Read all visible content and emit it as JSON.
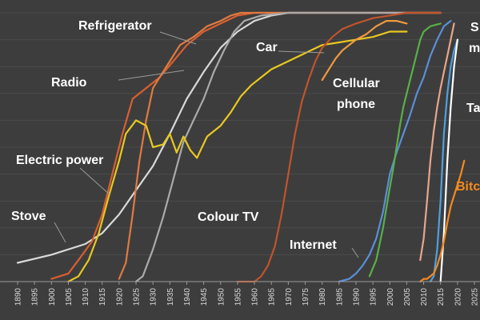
{
  "chart_data": {
    "type": "line",
    "title": "",
    "xlabel": "",
    "ylabel": "",
    "xlim": [
      1890,
      2025
    ],
    "ylim": [
      0,
      100
    ],
    "grid": true,
    "legend": "none",
    "x_ticks": [
      1890,
      1895,
      1900,
      1905,
      1910,
      1915,
      1920,
      1925,
      1930,
      1935,
      1940,
      1945,
      1950,
      1955,
      1960,
      1965,
      1970,
      1975,
      1980,
      1985,
      1990,
      1995,
      2000,
      2005,
      2010,
      2015,
      2020,
      2025
    ],
    "series": [
      {
        "name": "Stove",
        "color": "#d9d9d9",
        "points": [
          [
            1890,
            7
          ],
          [
            1900,
            10
          ],
          [
            1910,
            14
          ],
          [
            1915,
            18
          ],
          [
            1920,
            25
          ],
          [
            1925,
            34
          ],
          [
            1930,
            43
          ],
          [
            1935,
            55
          ],
          [
            1940,
            68
          ],
          [
            1945,
            78
          ],
          [
            1950,
            87
          ],
          [
            1955,
            93
          ],
          [
            1960,
            97
          ],
          [
            1965,
            99
          ],
          [
            1970,
            100
          ],
          [
            2015,
            100
          ]
        ]
      },
      {
        "name": "Electric power",
        "color": "#d85f30",
        "points": [
          [
            1900,
            1
          ],
          [
            1905,
            3
          ],
          [
            1908,
            8
          ],
          [
            1912,
            15
          ],
          [
            1915,
            25
          ],
          [
            1918,
            40
          ],
          [
            1921,
            55
          ],
          [
            1924,
            68
          ],
          [
            1928,
            72
          ],
          [
            1932,
            76
          ],
          [
            1936,
            82
          ],
          [
            1940,
            88
          ],
          [
            1945,
            93
          ],
          [
            1950,
            96
          ],
          [
            1955,
            99
          ],
          [
            1960,
            100
          ],
          [
            2015,
            100
          ]
        ]
      },
      {
        "name": "Radio",
        "color": "#e07a40",
        "points": [
          [
            1920,
            1
          ],
          [
            1922,
            7
          ],
          [
            1924,
            25
          ],
          [
            1926,
            45
          ],
          [
            1928,
            60
          ],
          [
            1930,
            72
          ],
          [
            1932,
            76
          ],
          [
            1935,
            82
          ],
          [
            1938,
            88
          ],
          [
            1942,
            91
          ],
          [
            1946,
            95
          ],
          [
            1950,
            97
          ],
          [
            1953,
            99
          ],
          [
            1956,
            100
          ],
          [
            2015,
            100
          ]
        ]
      },
      {
        "name": "Refrigerator",
        "color": "#aaaaaa",
        "points": [
          [
            1925,
            0
          ],
          [
            1927,
            2
          ],
          [
            1930,
            12
          ],
          [
            1933,
            24
          ],
          [
            1936,
            38
          ],
          [
            1939,
            52
          ],
          [
            1942,
            60
          ],
          [
            1945,
            68
          ],
          [
            1948,
            78
          ],
          [
            1951,
            86
          ],
          [
            1954,
            93
          ],
          [
            1957,
            97
          ],
          [
            1962,
            99
          ],
          [
            1970,
            100
          ],
          [
            2015,
            100
          ]
        ]
      },
      {
        "name": "Car",
        "color": "#e8c820",
        "points": [
          [
            1905,
            0
          ],
          [
            1908,
            2
          ],
          [
            1911,
            8
          ],
          [
            1914,
            18
          ],
          [
            1917,
            32
          ],
          [
            1920,
            45
          ],
          [
            1922,
            55
          ],
          [
            1925,
            60
          ],
          [
            1928,
            58
          ],
          [
            1930,
            50
          ],
          [
            1933,
            51
          ],
          [
            1935,
            55
          ],
          [
            1937,
            48
          ],
          [
            1939,
            54
          ],
          [
            1941,
            49
          ],
          [
            1943,
            46
          ],
          [
            1946,
            54
          ],
          [
            1950,
            58
          ],
          [
            1953,
            63
          ],
          [
            1956,
            69
          ],
          [
            1959,
            73
          ],
          [
            1962,
            76
          ],
          [
            1965,
            79
          ],
          [
            1970,
            82
          ],
          [
            1975,
            85
          ],
          [
            1980,
            88
          ],
          [
            1985,
            89
          ],
          [
            1990,
            90
          ],
          [
            1995,
            91
          ],
          [
            2000,
            93
          ],
          [
            2005,
            93
          ]
        ]
      },
      {
        "name": "Colour TV",
        "color": "#c0542c",
        "points": [
          [
            1955,
            0
          ],
          [
            1958,
            0
          ],
          [
            1960,
            0
          ],
          [
            1962,
            2
          ],
          [
            1964,
            6
          ],
          [
            1966,
            13
          ],
          [
            1968,
            25
          ],
          [
            1970,
            40
          ],
          [
            1972,
            55
          ],
          [
            1974,
            67
          ],
          [
            1976,
            75
          ],
          [
            1978,
            82
          ],
          [
            1980,
            87
          ],
          [
            1983,
            91
          ],
          [
            1986,
            94
          ],
          [
            1990,
            96
          ],
          [
            1995,
            98
          ],
          [
            2000,
            99
          ],
          [
            2005,
            100
          ],
          [
            2015,
            100
          ]
        ]
      },
      {
        "name": "Internet",
        "color": "#f09a3e",
        "points": [
          [
            1980,
            75
          ],
          [
            1982,
            79
          ],
          [
            1984,
            83
          ],
          [
            1986,
            86
          ],
          [
            1988,
            88
          ],
          [
            1990,
            90
          ],
          [
            1993,
            92
          ],
          [
            1996,
            95
          ],
          [
            1999,
            97
          ],
          [
            2002,
            97
          ],
          [
            2005,
            96
          ]
        ]
      },
      {
        "name": "Cellular phone",
        "color": "#5a8fd8",
        "points": [
          [
            1985,
            0
          ],
          [
            1988,
            1
          ],
          [
            1990,
            3
          ],
          [
            1992,
            6
          ],
          [
            1994,
            10
          ],
          [
            1996,
            16
          ],
          [
            1998,
            26
          ],
          [
            2000,
            40
          ],
          [
            2002,
            48
          ],
          [
            2004,
            55
          ],
          [
            2006,
            62
          ],
          [
            2008,
            70
          ],
          [
            2010,
            76
          ],
          [
            2012,
            84
          ],
          [
            2014,
            90
          ],
          [
            2016,
            95
          ],
          [
            2018,
            97
          ]
        ]
      },
      {
        "name": "Smartphone",
        "color": "#58b048",
        "points": [
          [
            1994,
            2
          ],
          [
            1996,
            8
          ],
          [
            1998,
            20
          ],
          [
            2000,
            35
          ],
          [
            2001,
            42
          ],
          [
            2002,
            50
          ],
          [
            2003,
            58
          ],
          [
            2004,
            65
          ],
          [
            2005,
            70
          ],
          [
            2006,
            75
          ],
          [
            2007,
            80
          ],
          [
            2008,
            85
          ],
          [
            2009,
            90
          ],
          [
            2010,
            93
          ],
          [
            2012,
            95
          ],
          [
            2015,
            96
          ]
        ]
      },
      {
        "name": "Tablet",
        "color": "#e8a58a",
        "points": [
          [
            2009,
            8
          ],
          [
            2010,
            16
          ],
          [
            2011,
            30
          ],
          [
            2012,
            45
          ],
          [
            2013,
            56
          ],
          [
            2014,
            65
          ],
          [
            2015,
            72
          ],
          [
            2016,
            78
          ],
          [
            2017,
            84
          ],
          [
            2018,
            90
          ],
          [
            2019,
            96
          ]
        ]
      },
      {
        "name": "Social media",
        "color": "#4fa0e0",
        "points": [
          [
            2012,
            0
          ],
          [
            2013,
            2
          ],
          [
            2014,
            12
          ],
          [
            2015,
            30
          ],
          [
            2016,
            55
          ],
          [
            2017,
            70
          ],
          [
            2018,
            80
          ],
          [
            2019,
            86
          ],
          [
            2020,
            90
          ]
        ]
      },
      {
        "name": "Tablet",
        "color": "#ffffff",
        "points": [
          [
            2015,
            0
          ],
          [
            2016,
            18
          ],
          [
            2017,
            45
          ],
          [
            2018,
            65
          ],
          [
            2019,
            80
          ],
          [
            2020,
            90
          ]
        ]
      },
      {
        "name": "Bitcoin",
        "color": "#f58a1e",
        "points": [
          [
            2009,
            0
          ],
          [
            2010,
            1
          ],
          [
            2011,
            1
          ],
          [
            2012,
            2
          ],
          [
            2013,
            3
          ],
          [
            2014,
            6
          ],
          [
            2015,
            10
          ],
          [
            2016,
            15
          ],
          [
            2017,
            22
          ],
          [
            2018,
            28
          ],
          [
            2019,
            32
          ],
          [
            2020,
            36
          ],
          [
            2021,
            40
          ],
          [
            2022,
            45
          ]
        ]
      }
    ],
    "annotations": [
      {
        "text": "Refrigerator",
        "color": "#ffffff"
      },
      {
        "text": "Radio",
        "color": "#ffffff"
      },
      {
        "text": "Car",
        "color": "#ffffff"
      },
      {
        "text": "Cellular",
        "color": "#ffffff"
      },
      {
        "text": "phone",
        "color": "#ffffff"
      },
      {
        "text": "Electric power",
        "color": "#ffffff"
      },
      {
        "text": "Stove",
        "color": "#ffffff"
      },
      {
        "text": "Colour TV",
        "color": "#ffffff"
      },
      {
        "text": "Internet",
        "color": "#ffffff"
      },
      {
        "text": "S",
        "color": "#ffffff"
      },
      {
        "text": "m",
        "color": "#ffffff"
      },
      {
        "text": "Ta",
        "color": "#ffffff"
      },
      {
        "text": "Bitc",
        "color": "#f58a1e"
      }
    ]
  }
}
